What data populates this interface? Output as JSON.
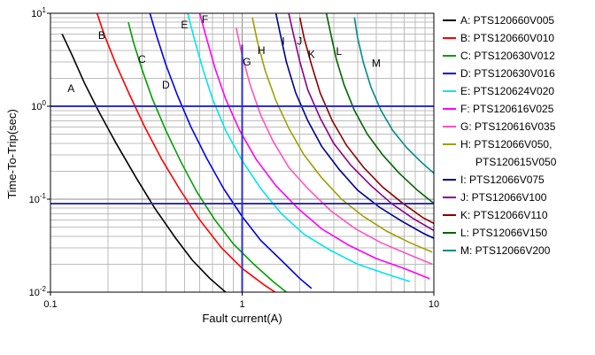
{
  "chart_data": {
    "type": "line",
    "title": "",
    "xlabel": "Fault current(A)",
    "ylabel": "Time-To-Trip(sec)",
    "x_scale": "log",
    "y_scale": "log",
    "xlim": [
      0.1,
      10
    ],
    "ylim": [
      0.01,
      10
    ],
    "x_ticks": [
      {
        "value": 0.1,
        "label": "0.1"
      },
      {
        "value": 1,
        "label": "1"
      },
      {
        "value": 10,
        "label": "10"
      }
    ],
    "y_ticks": [
      {
        "value": 10,
        "base": "10",
        "exp": "1"
      },
      {
        "value": 1,
        "base": "10",
        "exp": "0"
      },
      {
        "value": 0.1,
        "base": "10",
        "exp": "-1"
      },
      {
        "value": 0.01,
        "base": "10",
        "exp": "-2"
      }
    ],
    "grid": {
      "minor": true,
      "minor_color": "#bcbcbc",
      "major_color": "#8c8c8c"
    },
    "reference_color": "#3030cc",
    "reference_lines": [
      {
        "orientation": "horizontal",
        "y": 1
      },
      {
        "orientation": "horizontal",
        "y": 0.09
      },
      {
        "orientation": "vertical",
        "x": 1,
        "y_from": 0.01,
        "y_to": 4.6
      }
    ],
    "series": [
      {
        "letter": "A",
        "legend_lines": [
          "A: PTS120660V005"
        ],
        "color": "#000000",
        "label_pos": [
          0.128,
          1.55
        ],
        "points": [
          [
            0.115,
            6
          ],
          [
            0.13,
            3.5
          ],
          [
            0.15,
            1.8
          ],
          [
            0.18,
            0.85
          ],
          [
            0.22,
            0.4
          ],
          [
            0.28,
            0.17
          ],
          [
            0.35,
            0.08
          ],
          [
            0.45,
            0.038
          ],
          [
            0.55,
            0.022
          ],
          [
            0.68,
            0.014
          ],
          [
            0.82,
            0.01
          ]
        ]
      },
      {
        "letter": "B",
        "legend_lines": [
          "B: PTS120660V010"
        ],
        "color": "#ff0000",
        "label_pos": [
          0.185,
          5.8
        ],
        "points": [
          [
            0.175,
            10
          ],
          [
            0.19,
            6
          ],
          [
            0.22,
            2.8
          ],
          [
            0.26,
            1.3
          ],
          [
            0.31,
            0.6
          ],
          [
            0.38,
            0.27
          ],
          [
            0.47,
            0.13
          ],
          [
            0.6,
            0.06
          ],
          [
            0.78,
            0.03
          ],
          [
            1.0,
            0.018
          ],
          [
            1.3,
            0.012
          ],
          [
            1.6,
            0.009
          ]
        ]
      },
      {
        "letter": "C",
        "legend_lines": [
          "C: PTS120630V012"
        ],
        "color": "#00a000",
        "label_pos": [
          0.3,
          3.2
        ],
        "points": [
          [
            0.255,
            8
          ],
          [
            0.27,
            5
          ],
          [
            0.3,
            2.5
          ],
          [
            0.34,
            1.2
          ],
          [
            0.4,
            0.55
          ],
          [
            0.48,
            0.25
          ],
          [
            0.58,
            0.12
          ],
          [
            0.72,
            0.06
          ],
          [
            0.9,
            0.033
          ],
          [
            1.15,
            0.02
          ],
          [
            1.45,
            0.013
          ],
          [
            1.7,
            0.01
          ]
        ]
      },
      {
        "letter": "D",
        "legend_lines": [
          "D: PTS120630V016"
        ],
        "color": "#0000ee",
        "label_pos": [
          0.4,
          1.7
        ],
        "points": [
          [
            0.33,
            10
          ],
          [
            0.36,
            5.5
          ],
          [
            0.4,
            2.8
          ],
          [
            0.46,
            1.3
          ],
          [
            0.54,
            0.6
          ],
          [
            0.65,
            0.28
          ],
          [
            0.8,
            0.13
          ],
          [
            1.0,
            0.065
          ],
          [
            1.25,
            0.036
          ],
          [
            1.6,
            0.022
          ],
          [
            2.0,
            0.014
          ],
          [
            2.3,
            0.011
          ]
        ]
      },
      {
        "letter": "E",
        "legend_lines": [
          "E: PTS120624V020"
        ],
        "color": "#00e5ee",
        "label_pos": [
          0.5,
          7.5
        ],
        "points": [
          [
            0.52,
            10
          ],
          [
            0.56,
            5.5
          ],
          [
            0.62,
            2.6
          ],
          [
            0.7,
            1.2
          ],
          [
            0.82,
            0.55
          ],
          [
            1.0,
            0.26
          ],
          [
            1.25,
            0.13
          ],
          [
            1.6,
            0.07
          ],
          [
            2.1,
            0.042
          ],
          [
            2.9,
            0.028
          ],
          [
            4.0,
            0.02
          ],
          [
            5.5,
            0.016
          ],
          [
            7.5,
            0.013
          ]
        ]
      },
      {
        "letter": "F",
        "legend_lines": [
          "F: PTS120616V025"
        ],
        "color": "#ff00ff",
        "label_pos": [
          0.64,
          8.6
        ],
        "points": [
          [
            0.6,
            10
          ],
          [
            0.65,
            5.5
          ],
          [
            0.72,
            2.6
          ],
          [
            0.82,
            1.2
          ],
          [
            0.97,
            0.55
          ],
          [
            1.18,
            0.27
          ],
          [
            1.5,
            0.14
          ],
          [
            1.95,
            0.08
          ],
          [
            2.6,
            0.048
          ],
          [
            3.6,
            0.032
          ],
          [
            5.0,
            0.023
          ],
          [
            7.0,
            0.018
          ],
          [
            9.5,
            0.014
          ]
        ]
      },
      {
        "letter": "G",
        "legend_lines": [
          "G: PTS120616V035"
        ],
        "color": "#ff55bb",
        "label_pos": [
          1.06,
          3.0
        ],
        "points": [
          [
            0.93,
            7
          ],
          [
            1.0,
            3.5
          ],
          [
            1.1,
            1.7
          ],
          [
            1.25,
            0.8
          ],
          [
            1.45,
            0.42
          ],
          [
            1.75,
            0.22
          ],
          [
            2.2,
            0.13
          ],
          [
            2.9,
            0.075
          ],
          [
            3.9,
            0.048
          ],
          [
            5.3,
            0.034
          ],
          [
            7.2,
            0.026
          ],
          [
            9.8,
            0.02
          ]
        ]
      },
      {
        "letter": "H",
        "legend_lines": [
          "H: PTS12066V050,",
          "PTS120615V050"
        ],
        "color": "#a0a000",
        "label_pos": [
          1.26,
          4.0
        ],
        "points": [
          [
            1.13,
            9
          ],
          [
            1.2,
            5
          ],
          [
            1.32,
            2.4
          ],
          [
            1.5,
            1.15
          ],
          [
            1.75,
            0.58
          ],
          [
            2.1,
            0.3
          ],
          [
            2.6,
            0.17
          ],
          [
            3.3,
            0.1
          ],
          [
            4.3,
            0.065
          ],
          [
            5.7,
            0.045
          ],
          [
            7.5,
            0.034
          ],
          [
            9.8,
            0.027
          ]
        ]
      },
      {
        "letter": "I",
        "legend_lines": [
          "I: PTS12066V075"
        ],
        "color": "#000090",
        "label_pos": [
          1.64,
          5.0
        ],
        "points": [
          [
            1.5,
            10
          ],
          [
            1.58,
            6
          ],
          [
            1.7,
            3
          ],
          [
            1.9,
            1.4
          ],
          [
            2.2,
            0.7
          ],
          [
            2.6,
            0.37
          ],
          [
            3.2,
            0.21
          ],
          [
            4.0,
            0.125
          ],
          [
            5.2,
            0.082
          ],
          [
            6.8,
            0.058
          ],
          [
            8.8,
            0.043
          ],
          [
            10,
            0.038
          ]
        ]
      },
      {
        "letter": "J",
        "legend_lines": [
          "J: PTS12066V100"
        ],
        "color": "#8b008b",
        "label_pos": [
          1.99,
          5.0
        ],
        "points": [
          [
            1.75,
            10
          ],
          [
            1.85,
            6
          ],
          [
            2.0,
            3
          ],
          [
            2.2,
            1.5
          ],
          [
            2.55,
            0.75
          ],
          [
            3.0,
            0.4
          ],
          [
            3.7,
            0.23
          ],
          [
            4.7,
            0.14
          ],
          [
            6.0,
            0.09
          ],
          [
            7.8,
            0.062
          ],
          [
            10,
            0.046
          ]
        ]
      },
      {
        "letter": "K",
        "legend_lines": [
          "K: PTS12066V110"
        ],
        "color": "#8b0000",
        "label_pos": [
          2.3,
          3.6
        ],
        "points": [
          [
            2.0,
            9
          ],
          [
            2.1,
            5.5
          ],
          [
            2.3,
            2.8
          ],
          [
            2.55,
            1.4
          ],
          [
            2.95,
            0.7
          ],
          [
            3.5,
            0.38
          ],
          [
            4.3,
            0.22
          ],
          [
            5.4,
            0.135
          ],
          [
            6.9,
            0.09
          ],
          [
            8.8,
            0.063
          ],
          [
            10,
            0.055
          ]
        ]
      },
      {
        "letter": "L",
        "legend_lines": [
          "L: PTS12066V150"
        ],
        "color": "#006400",
        "label_pos": [
          3.2,
          3.9
        ],
        "points": [
          [
            2.75,
            10
          ],
          [
            2.9,
            6
          ],
          [
            3.1,
            3.2
          ],
          [
            3.4,
            1.7
          ],
          [
            3.85,
            0.9
          ],
          [
            4.5,
            0.5
          ],
          [
            5.4,
            0.3
          ],
          [
            6.6,
            0.19
          ],
          [
            8.2,
            0.125
          ],
          [
            10,
            0.09
          ]
        ]
      },
      {
        "letter": "M",
        "legend_lines": [
          "M: PTS12066V200"
        ],
        "color": "#008b8b",
        "label_pos": [
          5.0,
          2.9
        ],
        "points": [
          [
            3.85,
            9
          ],
          [
            4.0,
            5.5
          ],
          [
            4.3,
            2.9
          ],
          [
            4.7,
            1.6
          ],
          [
            5.3,
            0.9
          ],
          [
            6.1,
            0.55
          ],
          [
            7.2,
            0.36
          ],
          [
            8.6,
            0.25
          ],
          [
            10,
            0.19
          ]
        ]
      }
    ]
  }
}
